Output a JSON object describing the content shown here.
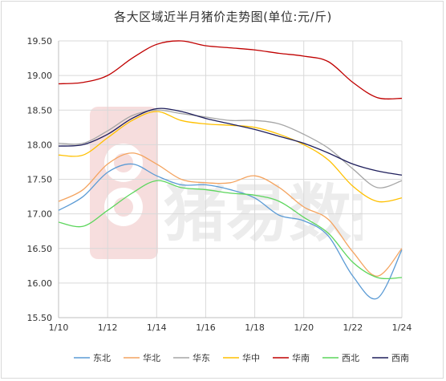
{
  "chart_data": {
    "type": "line",
    "title": "各大区域近半月猪价走势图(单位:元/斤)",
    "xlabel": "",
    "ylabel": "",
    "x_tick_labels": [
      "1/10",
      "1/12",
      "1/14",
      "1/16",
      "1/18",
      "1/20",
      "1/22",
      "1/24"
    ],
    "y_ticks": [
      "15.50",
      "16.00",
      "16.50",
      "17.00",
      "17.50",
      "18.00",
      "18.50",
      "19.00",
      "19.50"
    ],
    "ylim": [
      15.5,
      19.5
    ],
    "xlim": [
      10,
      24
    ],
    "grid": true,
    "legend_position": "bottom",
    "watermark_text": "猪易数据",
    "series": [
      {
        "name": "东北",
        "color": "#5b9bd5",
        "x": [
          10,
          11,
          12,
          13,
          14,
          15,
          16,
          17,
          18,
          19,
          20,
          21,
          22,
          23,
          24
        ],
        "y": [
          17.05,
          17.25,
          17.6,
          17.72,
          17.55,
          17.42,
          17.42,
          17.35,
          17.23,
          16.98,
          16.9,
          16.68,
          16.1,
          15.78,
          16.48
        ]
      },
      {
        "name": "华北",
        "color": "#f4a460",
        "x": [
          10,
          11,
          12,
          13,
          14,
          15,
          16,
          17,
          18,
          19,
          20,
          21,
          22,
          23,
          24
        ],
        "y": [
          17.18,
          17.35,
          17.72,
          17.88,
          17.72,
          17.5,
          17.45,
          17.45,
          17.55,
          17.38,
          17.1,
          16.92,
          16.45,
          16.1,
          16.5
        ]
      },
      {
        "name": "华东",
        "color": "#a6a6a6",
        "x": [
          10,
          11,
          12,
          13,
          14,
          15,
          16,
          17,
          18,
          19,
          20,
          21,
          22,
          23,
          24
        ],
        "y": [
          18.02,
          18.02,
          18.2,
          18.42,
          18.5,
          18.45,
          18.4,
          18.35,
          18.35,
          18.3,
          18.15,
          17.95,
          17.65,
          17.38,
          17.48
        ]
      },
      {
        "name": "华中",
        "color": "#ffc000",
        "x": [
          10,
          11,
          12,
          13,
          14,
          15,
          16,
          17,
          18,
          19,
          20,
          21,
          22,
          23,
          24
        ],
        "y": [
          17.85,
          17.85,
          18.1,
          18.35,
          18.48,
          18.35,
          18.3,
          18.28,
          18.25,
          18.15,
          18.0,
          17.78,
          17.4,
          17.18,
          17.23
        ]
      },
      {
        "name": "华南",
        "color": "#c00000",
        "x": [
          10,
          11,
          12,
          13,
          14,
          15,
          16,
          17,
          18,
          19,
          20,
          21,
          22,
          23,
          24
        ],
        "y": [
          18.88,
          18.9,
          19.0,
          19.25,
          19.45,
          19.5,
          19.43,
          19.4,
          19.37,
          19.32,
          19.28,
          19.2,
          18.9,
          18.68,
          18.67
        ]
      },
      {
        "name": "西北",
        "color": "#5cd65c",
        "x": [
          10,
          11,
          12,
          13,
          14,
          15,
          16,
          17,
          18,
          19,
          20,
          21,
          22,
          23,
          24
        ],
        "y": [
          16.88,
          16.82,
          17.05,
          17.3,
          17.48,
          17.38,
          17.35,
          17.3,
          17.27,
          17.18,
          16.95,
          16.72,
          16.3,
          16.08,
          16.08
        ]
      },
      {
        "name": "西南",
        "color": "#1f1f5c",
        "x": [
          10,
          11,
          12,
          13,
          14,
          15,
          16,
          17,
          18,
          19,
          20,
          21,
          22,
          23,
          24
        ],
        "y": [
          17.98,
          18.0,
          18.15,
          18.38,
          18.52,
          18.48,
          18.38,
          18.3,
          18.22,
          18.12,
          18.02,
          17.88,
          17.72,
          17.62,
          17.56
        ]
      }
    ]
  }
}
